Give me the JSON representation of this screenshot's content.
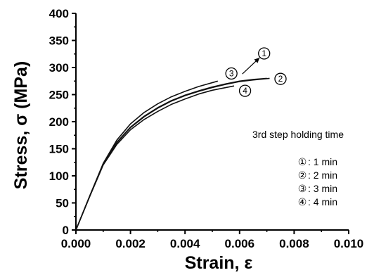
{
  "chart_data": {
    "type": "line",
    "xlabel": "Strain, ε",
    "ylabel": "Stress, σ (MPa)",
    "xlim": [
      0,
      0.01
    ],
    "ylim": [
      0,
      400
    ],
    "x_ticks": [
      "0.000",
      "0.002",
      "0.004",
      "0.006",
      "0.008",
      "0.010"
    ],
    "y_ticks": [
      "0",
      "50",
      "100",
      "150",
      "200",
      "250",
      "300",
      "350",
      "400"
    ],
    "grid": false,
    "legend": {
      "title": "3rd step holding time",
      "placement": "right",
      "entries": [
        {
          "marker": "①",
          "label": ": 1 min"
        },
        {
          "marker": "②",
          "label": ": 2 min"
        },
        {
          "marker": "③",
          "label": ": 3 min"
        },
        {
          "marker": "④",
          "label": ": 4 min"
        }
      ]
    },
    "series": [
      {
        "marker": "①",
        "x": [
          0,
          0.0005,
          0.001,
          0.0015,
          0.002,
          0.0025,
          0.003,
          0.0035,
          0.004,
          0.0045,
          0.005,
          0.0055,
          0.006,
          0.0065,
          0.007
        ],
        "y": [
          0,
          62,
          122,
          162,
          190,
          210,
          226,
          239,
          249,
          257,
          264,
          270,
          275,
          278,
          280
        ]
      },
      {
        "marker": "②",
        "x": [
          0,
          0.0005,
          0.001,
          0.0015,
          0.002,
          0.0025,
          0.003,
          0.0035,
          0.004,
          0.0045,
          0.005,
          0.0055,
          0.006,
          0.0065,
          0.0071
        ],
        "y": [
          0,
          62,
          122,
          161,
          189,
          209,
          225,
          238,
          248,
          256,
          263,
          269,
          274,
          277,
          280
        ]
      },
      {
        "marker": "③",
        "x": [
          0,
          0.0005,
          0.001,
          0.0015,
          0.002,
          0.0025,
          0.003,
          0.0035,
          0.004,
          0.0045,
          0.0052
        ],
        "y": [
          0,
          62,
          123,
          166,
          196,
          217,
          233,
          246,
          256,
          265,
          275
        ]
      },
      {
        "marker": "④",
        "x": [
          0,
          0.0005,
          0.001,
          0.0015,
          0.002,
          0.0025,
          0.003,
          0.0035,
          0.004,
          0.0045,
          0.005,
          0.0058
        ],
        "y": [
          0,
          61,
          120,
          158,
          185,
          204,
          219,
          232,
          242,
          251,
          258,
          266
        ]
      }
    ],
    "callouts": [
      {
        "marker": "①",
        "x": 0.0069,
        "y": 326,
        "arrow_to": [
          0.0061,
          288
        ]
      },
      {
        "marker": "②",
        "x": 0.0075,
        "y": 279
      },
      {
        "marker": "③",
        "x": 0.0057,
        "y": 289
      },
      {
        "marker": "④",
        "x": 0.0062,
        "y": 257
      }
    ]
  }
}
